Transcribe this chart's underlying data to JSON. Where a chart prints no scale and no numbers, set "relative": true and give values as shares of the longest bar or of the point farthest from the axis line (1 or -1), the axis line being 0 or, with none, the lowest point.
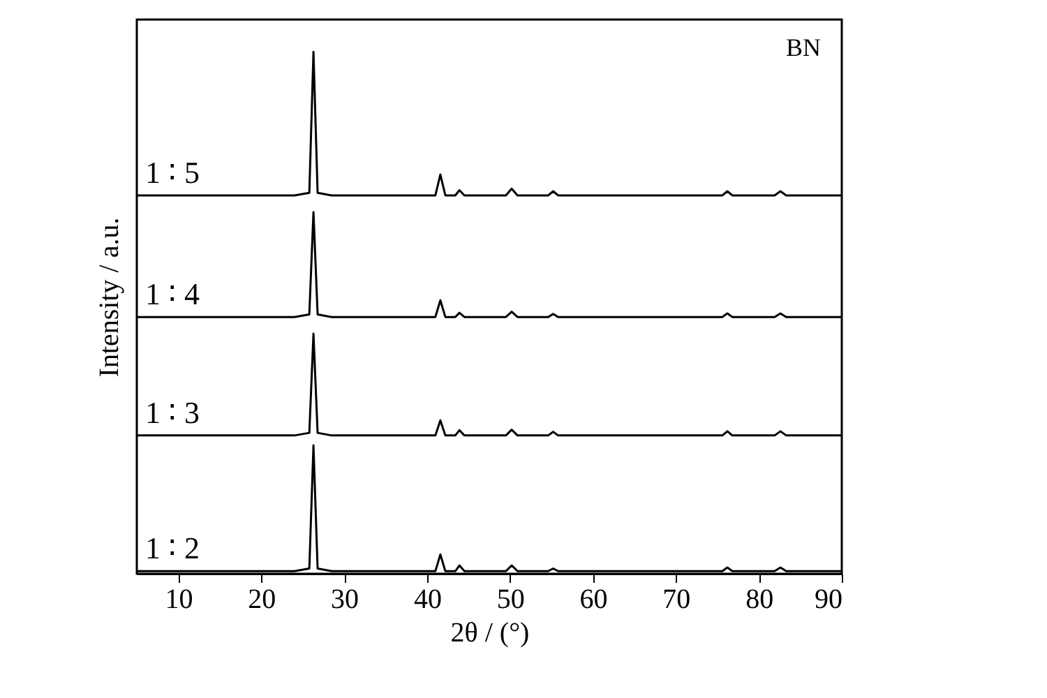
{
  "chart_data": {
    "type": "line",
    "relative": true,
    "xlabel": "2θ / (°)",
    "ylabel": "Intensity / a.u.",
    "xlim": [
      5,
      90
    ],
    "xticks": [
      10,
      20,
      30,
      40,
      50,
      60,
      70,
      80,
      90
    ],
    "x": [
      5,
      24,
      25.8,
      26.3,
      26.8,
      28.5,
      41.0,
      41.6,
      42.2,
      43.4,
      43.9,
      44.5,
      49.5,
      50.2,
      50.9,
      54.6,
      55.2,
      55.8,
      75.6,
      76.2,
      76.8,
      81.9,
      82.6,
      83.3,
      90
    ],
    "series": [
      {
        "name": "1 ∶ 2",
        "color": "#000000",
        "values": [
          0.005,
          0.005,
          0.01,
          0.246,
          0.01,
          0.005,
          0.005,
          0.037,
          0.005,
          0.005,
          0.016,
          0.005,
          0.005,
          0.016,
          0.005,
          0.005,
          0.01,
          0.005,
          0.005,
          0.012,
          0.005,
          0.005,
          0.012,
          0.005,
          0.005
        ]
      },
      {
        "name": "1 ∶ 3",
        "color": "#000000",
        "values": [
          0.265,
          0.265,
          0.27,
          0.46,
          0.27,
          0.265,
          0.265,
          0.294,
          0.265,
          0.265,
          0.275,
          0.265,
          0.265,
          0.276,
          0.265,
          0.265,
          0.272,
          0.265,
          0.265,
          0.273,
          0.265,
          0.265,
          0.273,
          0.265,
          0.265
        ]
      },
      {
        "name": "1 ∶ 4",
        "color": "#000000",
        "values": [
          0.492,
          0.492,
          0.497,
          0.693,
          0.497,
          0.492,
          0.492,
          0.524,
          0.492,
          0.492,
          0.5,
          0.492,
          0.492,
          0.502,
          0.492,
          0.492,
          0.498,
          0.492,
          0.492,
          0.499,
          0.492,
          0.492,
          0.499,
          0.492,
          0.492
        ]
      },
      {
        "name": "1 ∶ 5",
        "color": "#000000",
        "values": [
          0.725,
          0.725,
          0.73,
          1.0,
          0.73,
          0.725,
          0.725,
          0.765,
          0.725,
          0.725,
          0.735,
          0.725,
          0.725,
          0.738,
          0.725,
          0.725,
          0.733,
          0.725,
          0.725,
          0.733,
          0.725,
          0.725,
          0.733,
          0.725,
          0.725
        ]
      }
    ],
    "annotations": [
      "BN"
    ],
    "legend": false,
    "grid": false,
    "line_style": "solid",
    "marker": "none"
  }
}
